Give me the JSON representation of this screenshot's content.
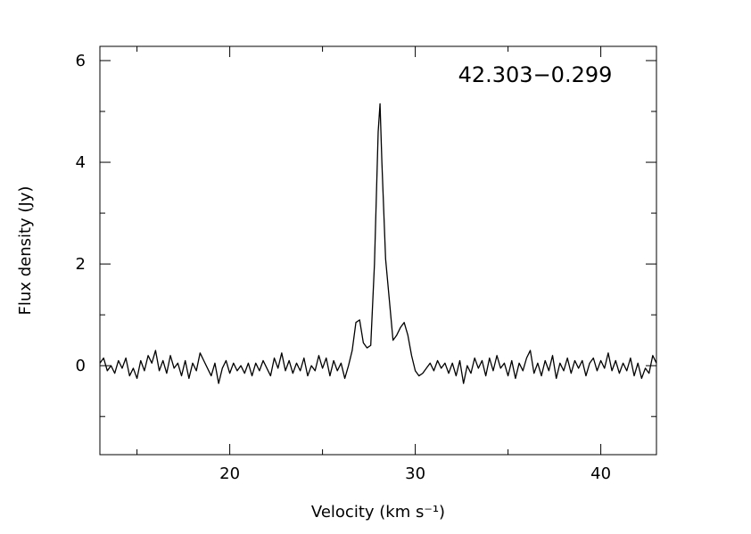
{
  "chart_data": {
    "type": "line",
    "annotation": "42.303−0.299",
    "x_label": "Velocity (km s⁻¹)",
    "y_label": "Flux density (Jy)",
    "color": "#000000",
    "xlim": [
      13,
      43
    ],
    "ylim": [
      -1.75,
      6.28
    ],
    "xticks": [
      20,
      30,
      40
    ],
    "xminor": [
      15,
      25,
      35
    ],
    "yticks": [
      0,
      2,
      4,
      6
    ],
    "yminor": [
      -1,
      1,
      3,
      5
    ],
    "x": [
      13.0,
      13.2,
      13.4,
      13.6,
      13.8,
      14.0,
      14.2,
      14.4,
      14.6,
      14.8,
      15.0,
      15.2,
      15.4,
      15.6,
      15.8,
      16.0,
      16.2,
      16.4,
      16.6,
      16.8,
      17.0,
      17.2,
      17.4,
      17.6,
      17.8,
      18.0,
      18.2,
      18.4,
      18.6,
      18.8,
      19.0,
      19.2,
      19.4,
      19.6,
      19.8,
      20.0,
      20.2,
      20.4,
      20.6,
      20.8,
      21.0,
      21.2,
      21.4,
      21.6,
      21.8,
      22.0,
      22.2,
      22.4,
      22.6,
      22.8,
      23.0,
      23.2,
      23.4,
      23.6,
      23.8,
      24.0,
      24.2,
      24.4,
      24.6,
      24.8,
      25.0,
      25.2,
      25.4,
      25.6,
      25.8,
      26.0,
      26.2,
      26.4,
      26.6,
      26.8,
      27.0,
      27.2,
      27.4,
      27.6,
      27.8,
      28.0,
      28.1,
      28.2,
      28.4,
      28.6,
      28.8,
      29.0,
      29.2,
      29.4,
      29.6,
      29.8,
      30.0,
      30.2,
      30.4,
      30.6,
      30.8,
      31.0,
      31.2,
      31.4,
      31.6,
      31.8,
      32.0,
      32.2,
      32.4,
      32.6,
      32.8,
      33.0,
      33.2,
      33.4,
      33.6,
      33.8,
      34.0,
      34.2,
      34.4,
      34.6,
      34.8,
      35.0,
      35.2,
      35.4,
      35.6,
      35.8,
      36.0,
      36.2,
      36.4,
      36.6,
      36.8,
      37.0,
      37.2,
      37.4,
      37.6,
      37.8,
      38.0,
      38.2,
      38.4,
      38.6,
      38.8,
      39.0,
      39.2,
      39.4,
      39.6,
      39.8,
      40.0,
      40.2,
      40.4,
      40.6,
      40.8,
      41.0,
      41.2,
      41.4,
      41.6,
      41.8,
      42.0,
      42.2,
      42.4,
      42.6,
      42.8,
      43.0
    ],
    "values": [
      0.05,
      0.15,
      -0.1,
      0.0,
      -0.15,
      0.1,
      -0.05,
      0.15,
      -0.2,
      -0.05,
      -0.25,
      0.1,
      -0.1,
      0.2,
      0.05,
      0.3,
      -0.1,
      0.1,
      -0.15,
      0.2,
      -0.05,
      0.05,
      -0.2,
      0.1,
      -0.25,
      0.05,
      -0.1,
      0.25,
      0.1,
      -0.05,
      -0.2,
      0.05,
      -0.35,
      -0.05,
      0.1,
      -0.15,
      0.05,
      -0.1,
      0.0,
      -0.15,
      0.05,
      -0.2,
      0.05,
      -0.1,
      0.1,
      -0.05,
      -0.2,
      0.15,
      -0.05,
      0.25,
      -0.1,
      0.1,
      -0.15,
      0.05,
      -0.1,
      0.15,
      -0.2,
      0.0,
      -0.1,
      0.2,
      -0.05,
      0.15,
      -0.2,
      0.1,
      -0.1,
      0.05,
      -0.25,
      0.0,
      0.3,
      0.85,
      0.9,
      0.45,
      0.35,
      0.4,
      2.0,
      4.6,
      5.15,
      4.0,
      2.1,
      1.3,
      0.5,
      0.6,
      0.75,
      0.85,
      0.6,
      0.2,
      -0.1,
      -0.2,
      -0.15,
      -0.05,
      0.05,
      -0.1,
      0.1,
      -0.05,
      0.05,
      -0.15,
      0.05,
      -0.2,
      0.1,
      -0.35,
      0.0,
      -0.15,
      0.15,
      -0.05,
      0.1,
      -0.2,
      0.15,
      -0.1,
      0.2,
      -0.05,
      0.05,
      -0.2,
      0.1,
      -0.25,
      0.05,
      -0.1,
      0.15,
      0.3,
      -0.15,
      0.05,
      -0.2,
      0.1,
      -0.1,
      0.2,
      -0.25,
      0.05,
      -0.1,
      0.15,
      -0.15,
      0.1,
      -0.05,
      0.1,
      -0.2,
      0.05,
      0.15,
      -0.1,
      0.1,
      -0.05,
      0.25,
      -0.1,
      0.1,
      -0.15,
      0.05,
      -0.1,
      0.15,
      -0.2,
      0.05,
      -0.25,
      -0.05,
      -0.15,
      0.2,
      0.05
    ]
  }
}
